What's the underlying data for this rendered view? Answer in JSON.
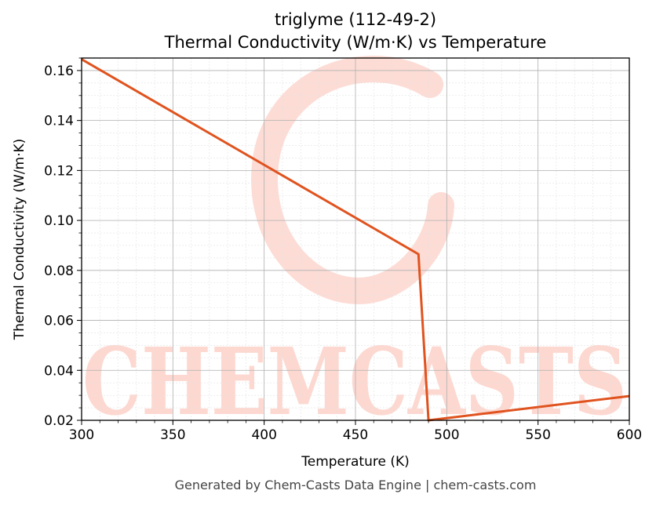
{
  "chart_data": {
    "type": "line",
    "title": "triglyme (112-49-2)",
    "subtitle": "Thermal Conductivity (W/m·K) vs Temperature",
    "xlabel": "Temperature (K)",
    "ylabel": "Thermal Conductivity (W/m·K)",
    "xlim": [
      300,
      600
    ],
    "ylim": [
      0.02,
      0.165
    ],
    "x_ticks": [
      "300",
      "350",
      "400",
      "450",
      "500",
      "550",
      "600"
    ],
    "y_ticks": [
      "0.02",
      "0.04",
      "0.06",
      "0.08",
      "0.10",
      "0.12",
      "0.14",
      "0.16"
    ],
    "grid": true,
    "series": [
      {
        "color": "#e0531f",
        "points": [
          [
            300,
            0.1645
          ],
          [
            484.5,
            0.0865
          ],
          [
            490,
            0.02
          ],
          [
            600,
            0.0297
          ]
        ]
      }
    ]
  },
  "watermark": "CHEMCASTS",
  "footer": "Generated by Chem-Casts Data Engine | chem-casts.com"
}
